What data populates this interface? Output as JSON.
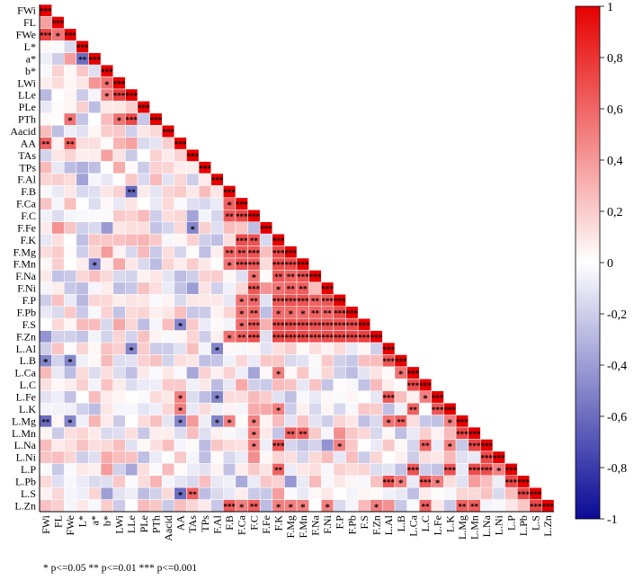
{
  "chart_data": {
    "type": "heatmap",
    "layout": "lower-triangle correlation matrix",
    "variables": [
      "FWi",
      "FL",
      "FWe",
      "L*",
      "a*",
      "b*",
      "LWi",
      "LLe",
      "PLe",
      "PTh",
      "Aacid",
      "AA",
      "TAs",
      "TPs",
      "F.Al",
      "F.B",
      "F.Ca",
      "F.C",
      "F.Fe",
      "F.K",
      "F.Mg",
      "F.Mn",
      "F.Na",
      "F.Ni",
      "F.P",
      "F.Pb",
      "F.S",
      "F.Zn",
      "L.Al",
      "L.B",
      "L.Ca",
      "L.C",
      "L.Fe",
      "L.K",
      "L.Mg",
      "L.Mn",
      "L.Na",
      "L.Ni",
      "L.P",
      "L.Pb",
      "L.S",
      "L.Zn"
    ],
    "colorbar": {
      "min": -1,
      "max": 1,
      "colors": {
        "negative": "#0a0a96",
        "zero": "#ffffff",
        "positive": "#e60000"
      },
      "tick_labels": [
        "1",
        "0,8",
        "0,6",
        "0,4",
        "0,2",
        "0",
        "-0,2",
        "-0,4",
        "-0,6",
        "-0,8",
        "-1"
      ]
    },
    "significance_footnote": "* p<=0.05  ** p<=0.01  *** p<=0.001",
    "cells": [
      [
        "F.Ca",
        "F.B",
        0.62,
        "*"
      ],
      [
        "F.C",
        "F.B",
        0.66,
        "**"
      ],
      [
        "F.C",
        "F.Ca",
        0.72,
        "***"
      ],
      [
        "F.K",
        "F.Ca",
        0.7,
        "***"
      ],
      [
        "F.K",
        "F.C",
        0.68,
        "**"
      ],
      [
        "F.Mg",
        "F.B",
        0.62,
        "**"
      ],
      [
        "F.Mg",
        "F.Ca",
        0.66,
        "**"
      ],
      [
        "F.Mg",
        "F.C",
        0.68,
        "***"
      ],
      [
        "F.Mg",
        "F.K",
        0.72,
        "***"
      ],
      [
        "F.Mn",
        "F.B",
        0.55,
        "*"
      ],
      [
        "F.Mn",
        "F.Ca",
        0.68,
        "***"
      ],
      [
        "F.Mn",
        "F.C",
        0.66,
        "***"
      ],
      [
        "F.Mn",
        "F.K",
        0.7,
        "***"
      ],
      [
        "F.Mn",
        "F.Mg",
        0.72,
        "***"
      ],
      [
        "F.Na",
        "F.C",
        0.55,
        "*"
      ],
      [
        "F.Na",
        "F.K",
        0.66,
        "**"
      ],
      [
        "F.Na",
        "F.Mg",
        0.62,
        "**"
      ],
      [
        "F.Na",
        "F.Mn",
        0.68,
        "***"
      ],
      [
        "F.Ni",
        "F.C",
        0.66,
        "***"
      ],
      [
        "F.Ni",
        "F.K",
        0.55,
        "*"
      ],
      [
        "F.Ni",
        "F.Mg",
        0.62,
        "**"
      ],
      [
        "F.Ni",
        "F.Mn",
        0.64,
        "**"
      ],
      [
        "F.P",
        "F.Ca",
        0.55,
        "*"
      ],
      [
        "F.P",
        "F.C",
        0.6,
        "**"
      ],
      [
        "F.P",
        "F.K",
        0.66,
        "***"
      ],
      [
        "F.P",
        "F.Mg",
        0.68,
        "***"
      ],
      [
        "F.P",
        "F.Mn",
        0.68,
        "***"
      ],
      [
        "F.P",
        "F.Na",
        0.62,
        "**"
      ],
      [
        "F.P",
        "F.Ni",
        0.66,
        "***"
      ],
      [
        "F.Pb",
        "F.Ca",
        0.55,
        "*"
      ],
      [
        "F.Pb",
        "F.C",
        0.6,
        "**"
      ],
      [
        "F.Pb",
        "F.K",
        0.58,
        "*"
      ],
      [
        "F.Pb",
        "F.Mg",
        0.58,
        "*"
      ],
      [
        "F.Pb",
        "F.Mn",
        0.58,
        "*"
      ],
      [
        "F.Pb",
        "F.Na",
        0.62,
        "**"
      ],
      [
        "F.Pb",
        "F.Ni",
        0.6,
        "**"
      ],
      [
        "F.Pb",
        "F.P",
        0.72,
        "***"
      ],
      [
        "F.S",
        "F.Ca",
        0.58,
        "*"
      ],
      [
        "F.S",
        "F.C",
        0.66,
        "***"
      ],
      [
        "F.S",
        "F.K",
        0.7,
        "***"
      ],
      [
        "F.S",
        "F.Mg",
        0.7,
        "***"
      ],
      [
        "F.S",
        "F.Mn",
        0.7,
        "***"
      ],
      [
        "F.S",
        "F.Na",
        0.68,
        "***"
      ],
      [
        "F.S",
        "F.Ni",
        0.68,
        "***"
      ],
      [
        "F.S",
        "F.P",
        0.7,
        "***"
      ],
      [
        "F.S",
        "F.Pb",
        0.7,
        "***"
      ],
      [
        "F.Zn",
        "F.B",
        0.55,
        "*"
      ],
      [
        "F.Zn",
        "F.Ca",
        0.62,
        "**"
      ],
      [
        "F.Zn",
        "F.C",
        0.68,
        "***"
      ],
      [
        "F.Zn",
        "F.K",
        0.72,
        "***"
      ],
      [
        "F.Zn",
        "F.Mg",
        0.72,
        "***"
      ],
      [
        "F.Zn",
        "F.Mn",
        0.72,
        "***"
      ],
      [
        "F.Zn",
        "F.Na",
        0.68,
        "***"
      ],
      [
        "F.Zn",
        "F.Ni",
        0.7,
        "***"
      ],
      [
        "F.Zn",
        "F.P",
        0.72,
        "***"
      ],
      [
        "F.Zn",
        "F.Pb",
        0.72,
        "***"
      ],
      [
        "F.Zn",
        "F.S",
        0.75,
        "***"
      ],
      [
        "FWe",
        "FWi",
        0.75,
        "***"
      ],
      [
        "FWe",
        "FL",
        0.55,
        "*"
      ],
      [
        "a*",
        "L*",
        -0.6,
        "**"
      ],
      [
        "LWi",
        "b*",
        0.55,
        "*"
      ],
      [
        "LLe",
        "LWi",
        0.75,
        "***"
      ],
      [
        "LLe",
        "b*",
        0.5,
        "*"
      ],
      [
        "PTh",
        "FWe",
        0.55,
        "*"
      ],
      [
        "PTh",
        "LWi",
        0.55,
        "*"
      ],
      [
        "PTh",
        "LLe",
        0.72,
        "***"
      ],
      [
        "AA",
        "FWi",
        0.62,
        "**"
      ],
      [
        "AA",
        "FWe",
        0.62,
        "**"
      ],
      [
        "F.B",
        "LLe",
        -0.62,
        "**"
      ],
      [
        "F.Fe",
        "TAs",
        -0.5,
        "*"
      ],
      [
        "F.Mn",
        "a*",
        -0.5,
        "*"
      ],
      [
        "F.S",
        "AA",
        -0.5,
        "*"
      ],
      [
        "L.Al",
        "LLe",
        -0.5,
        "*"
      ],
      [
        "L.Al",
        "F.Al",
        -0.5,
        "*"
      ],
      [
        "L.B",
        "FWi",
        -0.5,
        "*"
      ],
      [
        "L.B",
        "FWe",
        -0.5,
        "*"
      ],
      [
        "L.B",
        "L.Al",
        0.66,
        "***"
      ],
      [
        "L.Ca",
        "F.K",
        0.5,
        "*"
      ],
      [
        "L.Ca",
        "L.B",
        0.55,
        "*"
      ],
      [
        "L.C",
        "L.Ca",
        0.7,
        "***"
      ],
      [
        "L.Fe",
        "F.Al",
        -0.5,
        "*"
      ],
      [
        "L.Fe",
        "AA",
        0.5,
        "*"
      ],
      [
        "L.Fe",
        "L.Al",
        0.66,
        "***"
      ],
      [
        "L.Fe",
        "L.C",
        0.5,
        "*"
      ],
      [
        "L.K",
        "AA",
        0.5,
        "*"
      ],
      [
        "L.K",
        "F.K",
        0.5,
        "*"
      ],
      [
        "L.K",
        "L.Ca",
        0.62,
        "**"
      ],
      [
        "L.K",
        "L.Fe",
        0.66,
        "***"
      ],
      [
        "L.Mg",
        "FWi",
        -0.6,
        "**"
      ],
      [
        "L.Mg",
        "FWe",
        -0.5,
        "*"
      ],
      [
        "L.Mg",
        "AA",
        -0.5,
        "*"
      ],
      [
        "L.Mg",
        "F.Al",
        -0.5,
        "*"
      ],
      [
        "L.Mg",
        "F.B",
        0.5,
        "*"
      ],
      [
        "L.Mg",
        "F.C",
        0.5,
        "*"
      ],
      [
        "L.Mg",
        "L.B",
        0.62,
        "**"
      ],
      [
        "L.Mg",
        "L.K",
        0.5,
        "*"
      ],
      [
        "L.Mg",
        "L.Al",
        0.55,
        "*"
      ],
      [
        "L.Mn",
        "F.C",
        0.5,
        "*"
      ],
      [
        "L.Mn",
        "F.Mg",
        0.62,
        "**"
      ],
      [
        "L.Mn",
        "F.Mn",
        0.62,
        "**"
      ],
      [
        "L.Mn",
        "L.Mg",
        0.72,
        "***"
      ],
      [
        "L.Na",
        "F.C",
        0.5,
        "*"
      ],
      [
        "L.Na",
        "F.K",
        0.68,
        "***"
      ],
      [
        "L.Na",
        "F.P",
        0.5,
        "*"
      ],
      [
        "L.Na",
        "L.C",
        0.62,
        "**"
      ],
      [
        "L.Na",
        "L.K",
        0.5,
        "*"
      ],
      [
        "L.Na",
        "L.Mn",
        0.72,
        "***"
      ],
      [
        "L.Ni",
        "L.Na",
        0.72,
        "***"
      ],
      [
        "L.P",
        "F.K",
        0.62,
        "**"
      ],
      [
        "L.P",
        "L.Ca",
        0.68,
        "***"
      ],
      [
        "L.P",
        "L.K",
        0.68,
        "***"
      ],
      [
        "L.P",
        "L.Na",
        0.7,
        "***"
      ],
      [
        "L.P",
        "L.Ni",
        0.5,
        "*"
      ],
      [
        "L.P",
        "L.Mn",
        0.7,
        "***"
      ],
      [
        "L.Pb",
        "L.Al",
        0.68,
        "***"
      ],
      [
        "L.Pb",
        "L.B",
        0.5,
        "*"
      ],
      [
        "L.Pb",
        "L.C",
        0.68,
        "***"
      ],
      [
        "L.Pb",
        "L.Fe",
        0.5,
        "*"
      ],
      [
        "L.Pb",
        "L.P",
        0.72,
        "***"
      ],
      [
        "L.S",
        "AA",
        -0.6,
        "*"
      ],
      [
        "L.S",
        "TAs",
        0.62,
        "**"
      ],
      [
        "L.S",
        "L.Pb",
        0.72,
        "***"
      ],
      [
        "L.Zn",
        "F.B",
        0.66,
        "***"
      ],
      [
        "L.Zn",
        "F.Ca",
        0.5,
        "*"
      ],
      [
        "L.Zn",
        "F.C",
        0.62,
        "**"
      ],
      [
        "L.Zn",
        "F.K",
        0.5,
        "*"
      ],
      [
        "L.Zn",
        "F.Mg",
        0.5,
        "*"
      ],
      [
        "L.Zn",
        "F.Mn",
        0.5,
        "*"
      ],
      [
        "L.Zn",
        "F.Ni",
        0.5,
        "*"
      ],
      [
        "L.Zn",
        "F.Zn",
        0.5,
        "*"
      ],
      [
        "L.Zn",
        "L.C",
        0.62,
        "**"
      ],
      [
        "L.Zn",
        "L.Mg",
        0.62,
        "**"
      ],
      [
        "L.Zn",
        "L.Mn",
        0.62,
        "**"
      ],
      [
        "L.Zn",
        "L.S",
        0.72,
        "***"
      ]
    ]
  }
}
